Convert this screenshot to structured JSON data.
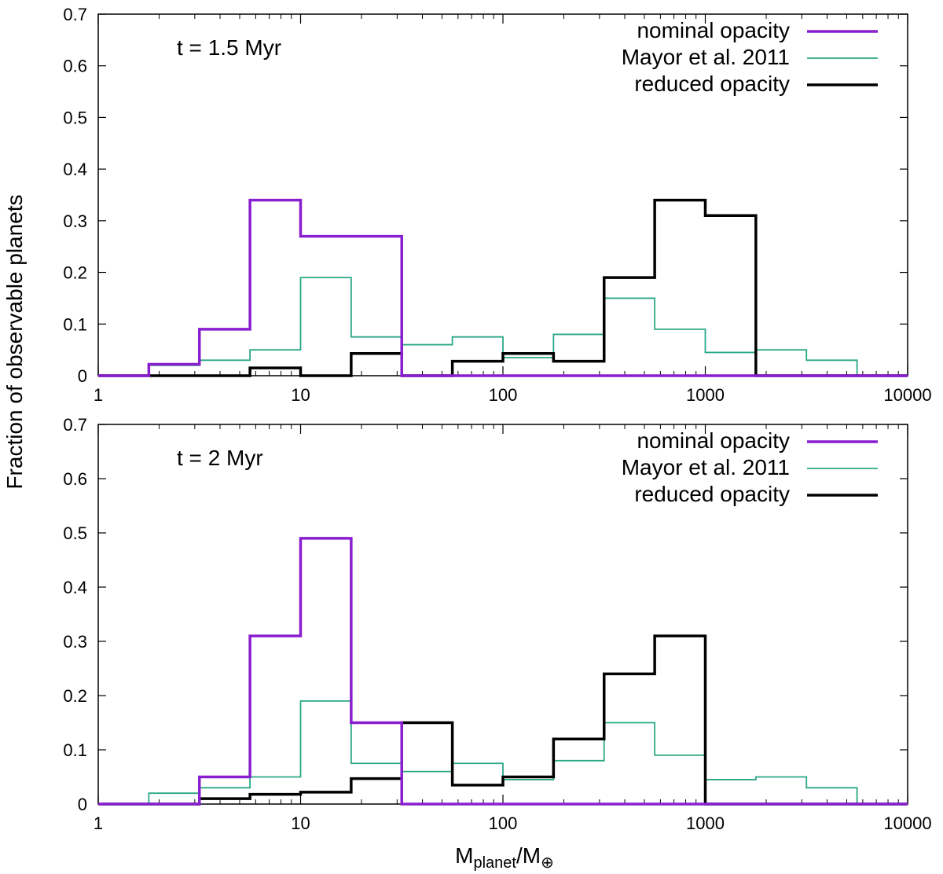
{
  "figure": {
    "ylabel": "Fraction of observable planets",
    "xlabel_main": "M",
    "xlabel_sub": "planet",
    "xlabel_sep": "/M",
    "xlabel_sub2": "⊕"
  },
  "chart_data": [
    {
      "type": "histogram-step",
      "annotation": "t = 1.5 Myr",
      "xscale": "log",
      "xlim": [
        1,
        10000
      ],
      "ylim": [
        0,
        0.7
      ],
      "xticks": [
        1,
        10,
        100,
        1000,
        10000
      ],
      "xtick_labels": [
        "1",
        "10",
        "100",
        "1000",
        "10000"
      ],
      "yticks": [
        0,
        0.1,
        0.2,
        0.3,
        0.4,
        0.5,
        0.6,
        0.7
      ],
      "ytick_labels": [
        "0",
        "0.1",
        "0.2",
        "0.3",
        "0.4",
        "0.5",
        "0.6",
        "0.7"
      ],
      "bin_edges": [
        1,
        1.778,
        3.162,
        5.623,
        10,
        17.78,
        31.62,
        56.23,
        100,
        177.8,
        316.2,
        562.3,
        1000,
        1778,
        3162,
        5623,
        10000
      ],
      "legend_position": "top-right",
      "series": [
        {
          "name": "nominal opacity",
          "color": "#8a1fd0",
          "width": 3.5,
          "values": [
            0,
            0.022,
            0.09,
            0.34,
            0.27,
            0.27,
            0,
            0,
            0,
            0,
            0,
            0,
            0,
            0,
            0,
            0
          ]
        },
        {
          "name": "Mayor et al. 2011",
          "color": "#2aa886",
          "width": 1.8,
          "values": [
            0,
            0.02,
            0.03,
            0.05,
            0.19,
            0.075,
            0.06,
            0.075,
            0.035,
            0.08,
            0.15,
            0.09,
            0.045,
            0.05,
            0.03,
            0
          ]
        },
        {
          "name": "reduced opacity",
          "color": "#000000",
          "width": 3.5,
          "values": [
            0,
            0,
            0,
            0.015,
            0,
            0.043,
            0,
            0.028,
            0.043,
            0.028,
            0.19,
            0.34,
            0.31,
            0,
            0,
            0
          ]
        }
      ]
    },
    {
      "type": "histogram-step",
      "annotation": "t = 2 Myr",
      "xscale": "log",
      "xlim": [
        1,
        10000
      ],
      "ylim": [
        0,
        0.7
      ],
      "xticks": [
        1,
        10,
        100,
        1000,
        10000
      ],
      "xtick_labels": [
        "1",
        "10",
        "100",
        "1000",
        "10000"
      ],
      "yticks": [
        0,
        0.1,
        0.2,
        0.3,
        0.4,
        0.5,
        0.6,
        0.7
      ],
      "ytick_labels": [
        "0",
        "0.1",
        "0.2",
        "0.3",
        "0.4",
        "0.5",
        "0.6",
        "0.7"
      ],
      "bin_edges": [
        1,
        1.778,
        3.162,
        5.623,
        10,
        17.78,
        31.62,
        56.23,
        100,
        177.8,
        316.2,
        562.3,
        1000,
        1778,
        3162,
        5623,
        10000
      ],
      "legend_position": "top-right",
      "series": [
        {
          "name": "nominal opacity",
          "color": "#8a1fd0",
          "width": 3.5,
          "values": [
            0,
            0,
            0.05,
            0.31,
            0.49,
            0.15,
            0,
            0,
            0,
            0,
            0,
            0,
            0,
            0,
            0,
            0
          ]
        },
        {
          "name": "Mayor et al. 2011",
          "color": "#2aa886",
          "width": 1.8,
          "values": [
            0,
            0.02,
            0.03,
            0.05,
            0.19,
            0.075,
            0.06,
            0.075,
            0.045,
            0.08,
            0.15,
            0.09,
            0.045,
            0.05,
            0.03,
            0
          ]
        },
        {
          "name": "reduced opacity",
          "color": "#000000",
          "width": 3.5,
          "values": [
            0,
            0,
            0.01,
            0.018,
            0.022,
            0.047,
            0.15,
            0.035,
            0.05,
            0.12,
            0.24,
            0.31,
            0,
            0,
            0,
            0
          ]
        }
      ]
    }
  ]
}
